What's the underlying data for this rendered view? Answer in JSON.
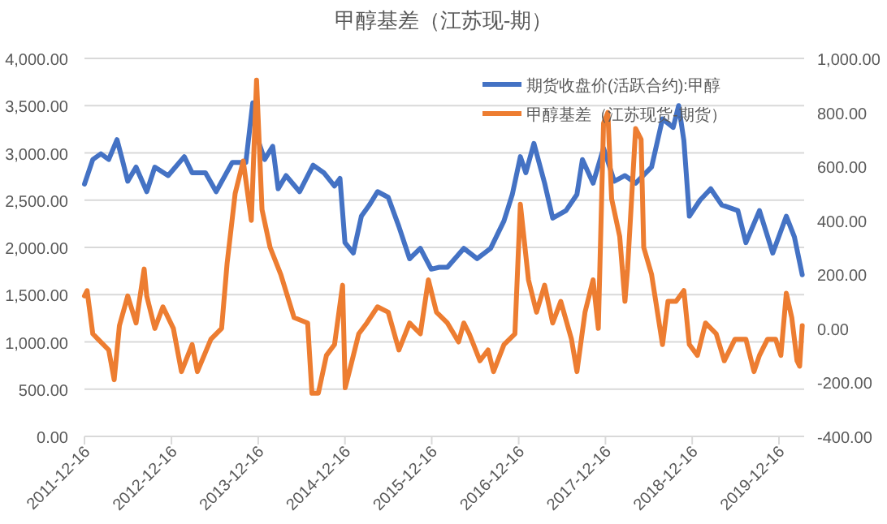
{
  "chart_data": {
    "type": "line",
    "title": "甲醇基差（江苏现-期）",
    "xlim": [
      "2011-12-16",
      "2020-03-31"
    ],
    "xticks": [
      "2011-12-16",
      "2012-12-16",
      "2013-12-16",
      "2014-12-16",
      "2015-12-16",
      "2016-12-16",
      "2017-12-16",
      "2018-12-16",
      "2019-12-16"
    ],
    "ylim": [
      0,
      4000
    ],
    "yticks": [
      {
        "value": 0,
        "label": "0.00"
      },
      {
        "value": 500,
        "label": "500.00"
      },
      {
        "value": 1000,
        "label": "1,000.00"
      },
      {
        "value": 1500,
        "label": "1,500.00"
      },
      {
        "value": 2000,
        "label": "2,000.00"
      },
      {
        "value": 2500,
        "label": "2,500.00"
      },
      {
        "value": 3000,
        "label": "3,000.00"
      },
      {
        "value": 3500,
        "label": "3,500.00"
      },
      {
        "value": 4000,
        "label": "4,000.00"
      }
    ],
    "y2lim": [
      -400,
      1000
    ],
    "y2ticks": [
      {
        "value": -400,
        "label": "-400.00"
      },
      {
        "value": -200,
        "label": "-200.00"
      },
      {
        "value": 0,
        "label": "0.00"
      },
      {
        "value": 200,
        "label": "200.00"
      },
      {
        "value": 400,
        "label": "400.00"
      },
      {
        "value": 600,
        "label": "600.00"
      },
      {
        "value": 800,
        "label": "800.00"
      },
      {
        "value": 1000,
        "label": "1,000.00"
      }
    ],
    "grid": "y",
    "legend": "top right",
    "line_style": "solid",
    "marker": "none",
    "series": [
      {
        "name": "期货收盘价(活跃合约):甲醇",
        "color": "#4472c4",
        "x": [
          "2011-12-16",
          "2012-01-20",
          "2012-02-23",
          "2012-03-27",
          "2012-05-01",
          "2012-05-23",
          "2012-06-15",
          "2012-07-20",
          "2012-09-03",
          "2012-10-07",
          "2012-12-02",
          "2013-02-08",
          "2013-03-13",
          "2013-05-08",
          "2013-06-22",
          "2013-08-29",
          "2013-10-25",
          "2013-11-23",
          "2013-12-16",
          "2014-01-12",
          "2014-02-15",
          "2014-03-10",
          "2014-04-12",
          "2014-06-08",
          "2014-08-04",
          "2014-09-18",
          "2014-11-02",
          "2014-11-25",
          "2014-12-16",
          "2015-01-20",
          "2015-02-23",
          "2015-03-29",
          "2015-05-02",
          "2015-06-16",
          "2015-07-31",
          "2015-09-14",
          "2015-10-29",
          "2015-12-14",
          "2016-01-17",
          "2016-02-20",
          "2016-04-29",
          "2016-06-24",
          "2016-08-20",
          "2016-10-15",
          "2016-11-19",
          "2016-12-23",
          "2017-01-15",
          "2017-02-18",
          "2017-04-04",
          "2017-05-08",
          "2017-07-03",
          "2017-08-18",
          "2017-09-10",
          "2017-10-25",
          "2017-12-08",
          "2018-01-22",
          "2018-03-08",
          "2018-04-22",
          "2018-06-28",
          "2018-08-13",
          "2018-09-27",
          "2018-10-20",
          "2018-11-11",
          "2018-12-04",
          "2019-01-18",
          "2019-03-04",
          "2019-04-19",
          "2019-06-26",
          "2019-07-30",
          "2019-09-25",
          "2019-11-20",
          "2020-01-16",
          "2020-02-19",
          "2020-03-23"
        ],
        "values": [
          2670,
          2930,
          2990,
          2930,
          3140,
          2930,
          2700,
          2850,
          2590,
          2850,
          2760,
          2960,
          2790,
          2790,
          2590,
          2900,
          2900,
          3530,
          3130,
          2930,
          3070,
          2620,
          2760,
          2590,
          2870,
          2790,
          2650,
          2730,
          2050,
          1940,
          2330,
          2450,
          2590,
          2530,
          2220,
          1880,
          1990,
          1770,
          1790,
          1790,
          1990,
          1880,
          1990,
          2280,
          2560,
          2960,
          2790,
          3100,
          2680,
          2310,
          2390,
          2560,
          2930,
          2680,
          3050,
          2700,
          2760,
          2680,
          2850,
          3360,
          3270,
          3500,
          3130,
          2330,
          2500,
          2620,
          2450,
          2390,
          2050,
          2390,
          1940,
          2330,
          2110,
          1710
        ]
      },
      {
        "name": "甲醇基差（江苏现货-期货）",
        "color": "#ed7d31",
        "axis": "y2",
        "x": [
          "2011-12-16",
          "2011-12-27",
          "2012-01-20",
          "2012-02-11",
          "2012-03-27",
          "2012-04-19",
          "2012-05-11",
          "2012-06-15",
          "2012-07-20",
          "2012-08-23",
          "2012-09-03",
          "2012-10-07",
          "2012-11-10",
          "2012-12-24",
          "2013-01-27",
          "2013-03-13",
          "2013-04-04",
          "2013-05-31",
          "2013-07-15",
          "2013-08-07",
          "2013-09-10",
          "2013-10-14",
          "2013-11-17",
          "2013-12-09",
          "2014-01-01",
          "2014-02-04",
          "2014-03-21",
          "2014-05-16",
          "2014-07-12",
          "2014-07-30",
          "2014-08-26",
          "2014-09-29",
          "2014-11-02",
          "2014-12-06",
          "2014-12-17",
          "2015-01-09",
          "2015-02-12",
          "2015-03-18",
          "2015-05-02",
          "2015-06-16",
          "2015-07-31",
          "2015-09-14",
          "2015-10-29",
          "2015-12-02",
          "2016-01-05",
          "2016-02-20",
          "2016-04-07",
          "2016-04-29",
          "2016-05-22",
          "2016-07-06",
          "2016-08-09",
          "2016-09-01",
          "2016-10-15",
          "2016-11-30",
          "2016-12-23",
          "2017-01-26",
          "2017-03-01",
          "2017-04-04",
          "2017-05-08",
          "2017-06-11",
          "2017-07-26",
          "2017-08-18",
          "2017-09-21",
          "2017-10-25",
          "2017-11-16",
          "2017-12-08",
          "2017-12-26",
          "2018-01-11",
          "2018-02-14",
          "2018-03-08",
          "2018-03-19",
          "2018-04-22",
          "2018-05-15",
          "2018-05-26",
          "2018-06-28",
          "2018-08-13",
          "2018-09-05",
          "2018-10-09",
          "2018-11-11",
          "2018-12-04",
          "2019-01-07",
          "2019-02-10",
          "2019-03-27",
          "2019-04-30",
          "2019-06-14",
          "2019-07-30",
          "2019-09-02",
          "2019-09-25",
          "2019-10-29",
          "2019-12-02",
          "2019-12-24",
          "2020-01-16",
          "2020-02-08",
          "2020-03-01",
          "2020-03-12",
          "2020-03-23"
        ],
        "values": [
          120,
          140,
          -20,
          -40,
          -80,
          -190,
          10,
          120,
          20,
          220,
          120,
          0,
          80,
          0,
          -160,
          -60,
          -160,
          -40,
          0,
          240,
          500,
          620,
          400,
          920,
          440,
          300,
          200,
          40,
          20,
          -240,
          -240,
          -100,
          -60,
          160,
          -220,
          -140,
          -20,
          20,
          80,
          60,
          -80,
          20,
          -20,
          180,
          60,
          20,
          -50,
          20,
          -20,
          -120,
          -80,
          -160,
          -60,
          -20,
          460,
          180,
          60,
          160,
          20,
          100,
          -40,
          -160,
          60,
          180,
          0,
          760,
          800,
          480,
          340,
          100,
          220,
          740,
          700,
          300,
          200,
          -60,
          100,
          100,
          140,
          -60,
          -100,
          20,
          -20,
          -120,
          -40,
          -40,
          -160,
          -100,
          -40,
          -40,
          -100,
          130,
          40,
          -120,
          -140,
          10
        ]
      }
    ]
  }
}
